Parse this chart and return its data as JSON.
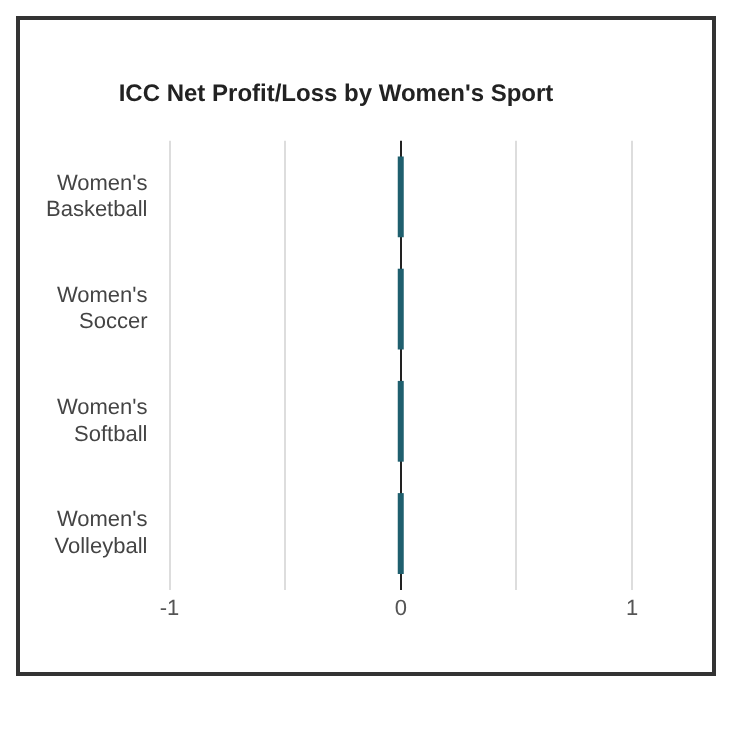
{
  "chart_data": {
    "type": "bar",
    "orientation": "horizontal",
    "title": "ICC Net Profit/Loss by Women's Sport",
    "categories": [
      "Women's Basketball",
      "Women's Soccer",
      "Women's Softball",
      "Women's Volleyball"
    ],
    "values": [
      0,
      0,
      0,
      0
    ],
    "color": "#1f5f6e",
    "xlim": [
      -1,
      1
    ],
    "xticks": [
      -1,
      {
        "value": -0.5,
        "label": null
      },
      0,
      {
        "value": 0.5,
        "label": null
      },
      1
    ],
    "grid": "x",
    "legend": false
  }
}
